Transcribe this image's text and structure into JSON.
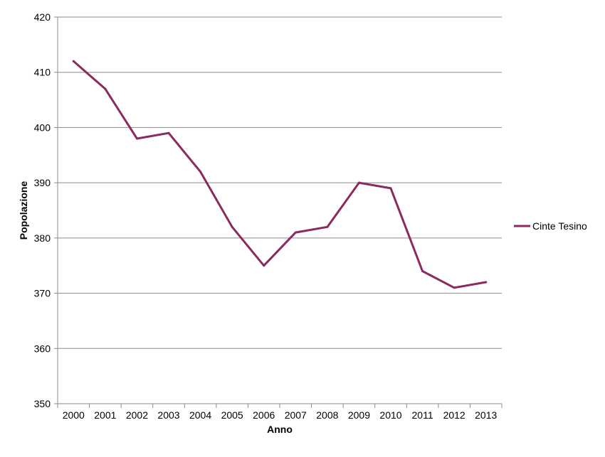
{
  "chart_data": {
    "type": "line",
    "title": "",
    "xlabel": "Anno",
    "ylabel": "Popolazione",
    "categories": [
      "2000",
      "2001",
      "2002",
      "2003",
      "2004",
      "2005",
      "2006",
      "2007",
      "2008",
      "2009",
      "2010",
      "2011",
      "2012",
      "2013"
    ],
    "series": [
      {
        "name": "Cinte Tesino",
        "color": "#8b2a5e",
        "values": [
          412,
          407,
          398,
          399,
          392,
          382,
          375,
          381,
          382,
          390,
          389,
          374,
          371,
          372
        ]
      }
    ],
    "ylim": [
      350,
      420
    ],
    "yticks": [
      350,
      360,
      370,
      380,
      390,
      400,
      410,
      420
    ],
    "grid": true,
    "legend_position": "right"
  }
}
